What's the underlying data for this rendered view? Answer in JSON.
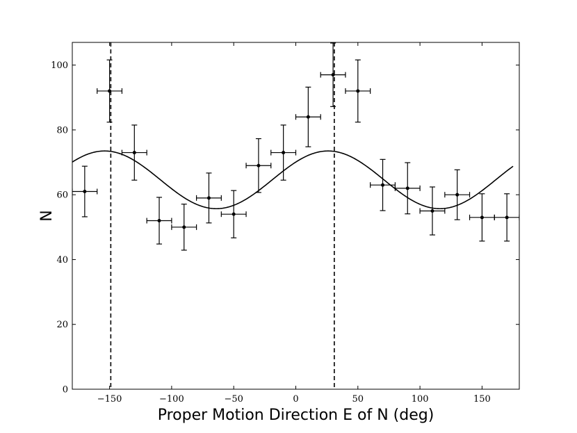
{
  "chart_data": {
    "type": "scatter",
    "title": "",
    "xlabel": "Proper Motion Direction E of N (deg)",
    "ylabel": "N",
    "xlim": [
      -180,
      180
    ],
    "ylim": [
      0,
      107
    ],
    "xticks": [
      -150,
      -100,
      -50,
      0,
      50,
      100,
      150
    ],
    "yticks": [
      0,
      20,
      40,
      60,
      80,
      100
    ],
    "grid": false,
    "legend": "none",
    "series": [
      {
        "kind": "errorbar",
        "x": [
          -170,
          -150,
          -130,
          -110,
          -90,
          -70,
          -50,
          -30,
          -10,
          10,
          30,
          50,
          70,
          90,
          110,
          130,
          150,
          170
        ],
        "y": [
          61,
          92,
          73,
          52,
          50,
          59,
          54,
          69,
          73,
          84,
          97,
          92,
          63,
          62,
          55,
          60,
          53,
          53
        ],
        "yerr": [
          7.8,
          9.6,
          8.5,
          7.2,
          7.1,
          7.7,
          7.3,
          8.3,
          8.5,
          9.2,
          9.8,
          9.6,
          7.9,
          7.9,
          7.4,
          7.7,
          7.3,
          7.3
        ],
        "xerr": 10,
        "color": "#000000"
      },
      {
        "kind": "line",
        "function": "sinusoid",
        "mean": 64.6,
        "amplitude": 8.9,
        "peak_deg": 26,
        "period_deg": 180,
        "x_range": [
          -180,
          175
        ],
        "color": "#000000"
      }
    ],
    "vlines": [
      {
        "x": -149,
        "style": "dashed",
        "color": "#000000"
      },
      {
        "x": 31,
        "style": "dashed",
        "color": "#000000"
      }
    ]
  }
}
